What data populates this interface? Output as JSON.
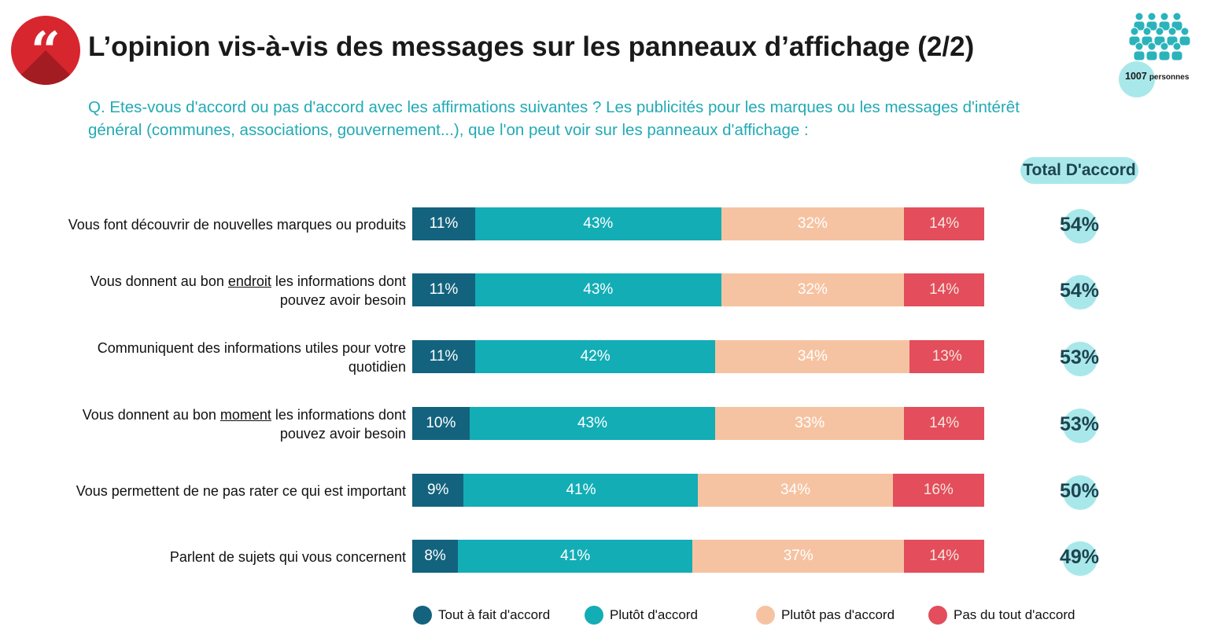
{
  "header": {
    "title": "L’opinion vis-à-vis des messages sur les panneaux d’affichage (2/2)",
    "quote_glyph": "“",
    "question": "Q. Etes-vous d'accord ou pas d'accord avec les affirmations suivantes ? Les publicités pour les marques ou les messages d'intérêt général (communes, associations, gouvernement...), que l'on peut voir sur les panneaux d'affichage :",
    "sample_count": "1007",
    "sample_unit": "personnes",
    "total_header": "Total D'accord"
  },
  "colors": {
    "accent_red": "#d7262e",
    "teal_text": "#22aab4",
    "light_teal": "#a9e8ea",
    "dark_navy": "#1d4450"
  },
  "rows": [
    {
      "label_parts": [
        {
          "text": "Vous font découvrir de nouvelles marques ou produits"
        }
      ],
      "total": "54%"
    },
    {
      "label_parts": [
        {
          "text": "Vous donnent au bon "
        },
        {
          "text": "endroit",
          "u": true
        },
        {
          "text": " les informations dont pouvez avoir besoin"
        }
      ],
      "total": "54%"
    },
    {
      "label_parts": [
        {
          "text": "Communiquent des informations utiles pour votre quotidien"
        }
      ],
      "total": "53%"
    },
    {
      "label_parts": [
        {
          "text": "Vous donnent au bon "
        },
        {
          "text": "moment",
          "u": true
        },
        {
          "text": " les informations dont pouvez avoir besoin"
        }
      ],
      "total": "53%"
    },
    {
      "label_parts": [
        {
          "text": "Vous permettent de ne pas rater ce qui est important"
        }
      ],
      "total": "50%"
    },
    {
      "label_parts": [
        {
          "text": "Parlent de sujets qui vous concernent"
        }
      ],
      "total": "49%"
    }
  ],
  "chart_data": {
    "type": "bar",
    "orientation": "horizontal",
    "stacked": true,
    "normalized": "100%",
    "categories": [
      "Vous font découvrir de nouvelles marques ou produits",
      "Vous donnent au bon endroit les informations dont pouvez avoir besoin",
      "Communiquent des informations utiles pour votre quotidien",
      "Vous donnent au bon moment les informations dont pouvez avoir besoin",
      "Vous permettent de ne pas rater ce qui est important",
      "Parlent de sujets qui vous concernent"
    ],
    "series": [
      {
        "name": "Tout à fait d'accord",
        "color": "#13637e",
        "values": [
          11,
          11,
          11,
          10,
          9,
          8
        ],
        "labels": [
          "11%",
          "11%",
          "11%",
          "10%",
          "9%",
          "8%"
        ]
      },
      {
        "name": "Plutôt d'accord",
        "color": "#13adb6",
        "values": [
          43,
          43,
          42,
          43,
          41,
          41
        ],
        "labels": [
          "43%",
          "43%",
          "42%",
          "43%",
          "41%",
          "41%"
        ]
      },
      {
        "name": "Plutôt pas d'accord",
        "color": "#f6c3a2",
        "values": [
          32,
          32,
          34,
          33,
          34,
          37
        ],
        "labels": [
          "32%",
          "32%",
          "34%",
          "33%",
          "34%",
          "37%"
        ]
      },
      {
        "name": "Pas du tout d'accord",
        "color": "#e34d5c",
        "values": [
          14,
          14,
          13,
          14,
          16,
          14
        ],
        "labels": [
          "14%",
          "14%",
          "13%",
          "14%",
          "16%",
          "14%"
        ]
      }
    ],
    "total_agree": [
      54,
      54,
      53,
      53,
      50,
      49
    ],
    "total_agree_labels": [
      "54%",
      "54%",
      "53%",
      "53%",
      "50%",
      "49%"
    ],
    "legend_position": "bottom"
  }
}
